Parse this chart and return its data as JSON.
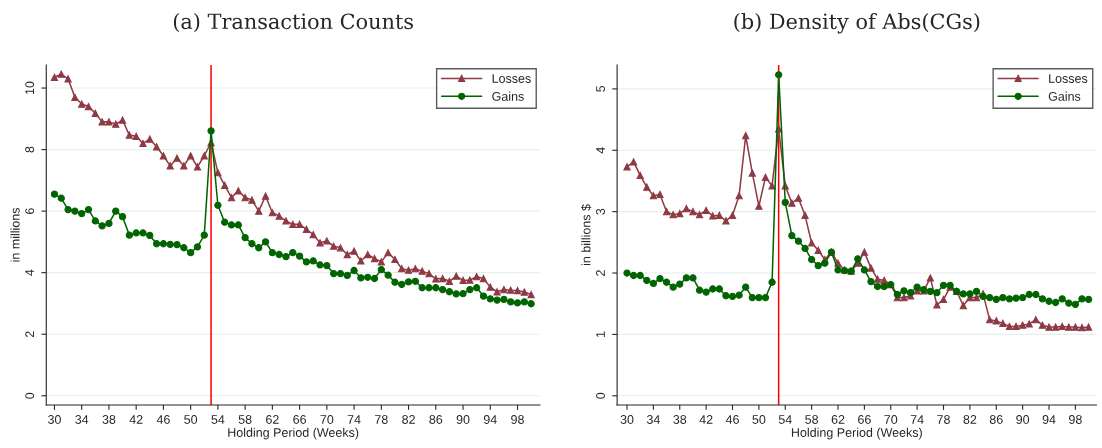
{
  "chart_data": [
    {
      "type": "line",
      "title": "(a) Transaction Counts",
      "xlabel": "Holding Period (Weeks)",
      "ylabel": "in millions",
      "x": [
        30,
        31,
        32,
        33,
        34,
        35,
        36,
        37,
        38,
        39,
        40,
        41,
        42,
        43,
        44,
        45,
        46,
        47,
        48,
        49,
        50,
        51,
        52,
        53,
        54,
        55,
        56,
        57,
        58,
        59,
        60,
        61,
        62,
        63,
        64,
        65,
        66,
        67,
        68,
        69,
        70,
        71,
        72,
        73,
        74,
        75,
        76,
        77,
        78,
        79,
        80,
        81,
        82,
        83,
        84,
        85,
        86,
        87,
        88,
        89,
        90,
        91,
        92,
        93,
        94,
        95,
        96,
        97,
        98,
        99,
        100
      ],
      "series": [
        {
          "name": "Losses",
          "color": "#8e3a44",
          "marker": "triangle",
          "values": [
            10.35,
            10.45,
            10.3,
            9.7,
            9.48,
            9.4,
            9.18,
            8.9,
            8.9,
            8.83,
            8.96,
            8.47,
            8.43,
            8.2,
            8.34,
            8.09,
            7.8,
            7.47,
            7.72,
            7.47,
            7.8,
            7.44,
            7.8,
            8.23,
            7.25,
            6.84,
            6.44,
            6.66,
            6.44,
            6.36,
            6.0,
            6.49,
            5.95,
            5.84,
            5.68,
            5.57,
            5.57,
            5.41,
            5.24,
            4.97,
            5.03,
            4.86,
            4.81,
            4.59,
            4.7,
            4.38,
            4.59,
            4.46,
            4.35,
            4.65,
            4.43,
            4.13,
            4.08,
            4.13,
            4.05,
            3.97,
            3.8,
            3.81,
            3.72,
            3.89,
            3.75,
            3.76,
            3.87,
            3.81,
            3.53,
            3.38,
            3.45,
            3.43,
            3.42,
            3.37,
            3.29
          ]
        },
        {
          "name": "Gains",
          "color": "#006400",
          "marker": "circle",
          "values": [
            6.55,
            6.42,
            6.05,
            6.0,
            5.92,
            6.05,
            5.68,
            5.52,
            5.6,
            6.0,
            5.82,
            5.22,
            5.29,
            5.29,
            5.21,
            4.94,
            4.94,
            4.92,
            4.91,
            4.81,
            4.65,
            4.84,
            5.22,
            8.61,
            6.19,
            5.64,
            5.55,
            5.55,
            5.14,
            4.94,
            4.81,
            5.0,
            4.65,
            4.59,
            4.52,
            4.65,
            4.54,
            4.35,
            4.38,
            4.25,
            4.23,
            3.97,
            3.97,
            3.91,
            4.07,
            3.83,
            3.85,
            3.81,
            4.1,
            3.92,
            3.69,
            3.62,
            3.7,
            3.72,
            3.51,
            3.51,
            3.51,
            3.45,
            3.38,
            3.31,
            3.32,
            3.45,
            3.51,
            3.24,
            3.15,
            3.11,
            3.13,
            3.05,
            3.02,
            3.05,
            2.99
          ]
        }
      ],
      "xlim": [
        28.8,
        101.3
      ],
      "ylim": [
        -0.3,
        10.75
      ],
      "xticks": [
        30,
        34,
        38,
        42,
        46,
        50,
        54,
        58,
        62,
        66,
        70,
        74,
        78,
        82,
        86,
        90,
        94,
        98
      ],
      "yticks": [
        0,
        2,
        4,
        6,
        8,
        10
      ],
      "ref_lines": [
        {
          "axis": "x",
          "value": 53,
          "color": "#ff0000"
        }
      ],
      "grid": "y",
      "legend": "top right",
      "line_style": "solid"
    },
    {
      "type": "line",
      "title": "(b) Density of Abs(CGs)",
      "xlabel": "Holding Period (Weeks)",
      "ylabel": "in billions $",
      "x": [
        30,
        31,
        32,
        33,
        34,
        35,
        36,
        37,
        38,
        39,
        40,
        41,
        42,
        43,
        44,
        45,
        46,
        47,
        48,
        49,
        50,
        51,
        52,
        53,
        54,
        55,
        56,
        57,
        58,
        59,
        60,
        61,
        62,
        63,
        64,
        65,
        66,
        67,
        68,
        69,
        70,
        71,
        72,
        73,
        74,
        75,
        76,
        77,
        78,
        79,
        80,
        81,
        82,
        83,
        84,
        85,
        86,
        87,
        88,
        89,
        90,
        91,
        92,
        93,
        94,
        95,
        96,
        97,
        98,
        99,
        100
      ],
      "series": [
        {
          "name": "Losses",
          "color": "#8e3a44",
          "marker": "triangle",
          "values": [
            3.73,
            3.81,
            3.59,
            3.4,
            3.26,
            3.28,
            3.0,
            2.95,
            2.97,
            3.05,
            3.0,
            2.95,
            3.02,
            2.93,
            2.94,
            2.85,
            2.94,
            3.26,
            4.24,
            3.63,
            3.09,
            3.56,
            3.42,
            4.35,
            3.42,
            3.14,
            3.22,
            2.94,
            2.49,
            2.37,
            2.22,
            2.34,
            2.16,
            2.05,
            2.03,
            2.16,
            2.34,
            2.08,
            1.9,
            1.88,
            1.81,
            1.6,
            1.6,
            1.63,
            1.71,
            1.71,
            1.92,
            1.48,
            1.57,
            1.77,
            1.7,
            1.47,
            1.6,
            1.6,
            1.66,
            1.24,
            1.22,
            1.18,
            1.13,
            1.13,
            1.15,
            1.17,
            1.24,
            1.15,
            1.12,
            1.12,
            1.13,
            1.12,
            1.12,
            1.11,
            1.12
          ]
        },
        {
          "name": "Gains",
          "color": "#006400",
          "marker": "circle",
          "values": [
            2.0,
            1.96,
            1.96,
            1.88,
            1.83,
            1.91,
            1.85,
            1.77,
            1.82,
            1.92,
            1.92,
            1.72,
            1.69,
            1.74,
            1.74,
            1.63,
            1.62,
            1.64,
            1.77,
            1.6,
            1.6,
            1.6,
            1.85,
            5.23,
            3.15,
            2.61,
            2.52,
            2.4,
            2.22,
            2.12,
            2.16,
            2.34,
            2.05,
            2.04,
            2.03,
            2.23,
            2.05,
            1.86,
            1.78,
            1.78,
            1.81,
            1.65,
            1.71,
            1.68,
            1.77,
            1.73,
            1.7,
            1.68,
            1.8,
            1.8,
            1.7,
            1.66,
            1.66,
            1.7,
            1.62,
            1.6,
            1.57,
            1.6,
            1.58,
            1.59,
            1.6,
            1.65,
            1.65,
            1.58,
            1.54,
            1.52,
            1.58,
            1.51,
            1.49,
            1.58,
            1.57
          ]
        }
      ],
      "xlim": [
        28.5,
        101.2
      ],
      "ylim": [
        -0.15,
        5.39
      ],
      "xticks": [
        30,
        34,
        38,
        42,
        46,
        50,
        54,
        58,
        62,
        66,
        70,
        74,
        78,
        82,
        86,
        90,
        94,
        98
      ],
      "yticks": [
        0,
        1,
        2,
        3,
        4,
        5
      ],
      "ref_lines": [
        {
          "axis": "x",
          "value": 53,
          "color": "#ff0000"
        }
      ],
      "grid": "y",
      "legend": "top right",
      "line_style": "solid"
    }
  ]
}
